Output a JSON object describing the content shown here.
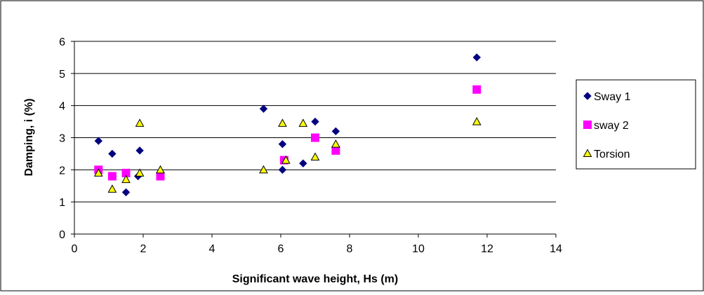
{
  "chart_data": {
    "type": "scatter",
    "title": "",
    "xlabel": "Significant wave height, Hs (m)",
    "ylabel": "Damping, i (%)",
    "xlim": [
      0,
      14
    ],
    "ylim": [
      0,
      6
    ],
    "xticks": [
      0,
      2,
      4,
      6,
      8,
      10,
      12,
      14
    ],
    "yticks": [
      0,
      1,
      2,
      3,
      4,
      5,
      6
    ],
    "grid": "horizontal",
    "legend_position": "right",
    "series": [
      {
        "name": "Sway 1",
        "marker": "diamond",
        "color": "#000080",
        "points": [
          [
            0.7,
            2.9
          ],
          [
            1.1,
            2.5
          ],
          [
            1.5,
            1.3
          ],
          [
            1.85,
            1.8
          ],
          [
            1.9,
            2.6
          ],
          [
            5.5,
            3.9
          ],
          [
            6.05,
            2.8
          ],
          [
            6.05,
            2.0
          ],
          [
            6.65,
            2.2
          ],
          [
            7.0,
            3.5
          ],
          [
            7.6,
            3.2
          ],
          [
            11.7,
            5.5
          ]
        ]
      },
      {
        "name": "sway 2",
        "marker": "square",
        "color": "#ff00ff",
        "points": [
          [
            0.7,
            2.0
          ],
          [
            1.1,
            1.8
          ],
          [
            1.5,
            1.9
          ],
          [
            2.5,
            1.8
          ],
          [
            6.1,
            2.3
          ],
          [
            7.0,
            3.0
          ],
          [
            7.6,
            2.6
          ],
          [
            11.7,
            4.5
          ]
        ]
      },
      {
        "name": "Torsion",
        "marker": "triangle",
        "color": "#ffff00",
        "stroke": "#000000",
        "points": [
          [
            0.7,
            1.9
          ],
          [
            1.1,
            1.4
          ],
          [
            1.5,
            1.7
          ],
          [
            1.9,
            1.9
          ],
          [
            1.9,
            3.45
          ],
          [
            2.5,
            2.0
          ],
          [
            5.5,
            2.0
          ],
          [
            6.05,
            3.45
          ],
          [
            6.15,
            2.3
          ],
          [
            6.65,
            3.45
          ],
          [
            7.0,
            2.4
          ],
          [
            7.6,
            2.8
          ],
          [
            11.7,
            3.5
          ]
        ]
      }
    ]
  }
}
